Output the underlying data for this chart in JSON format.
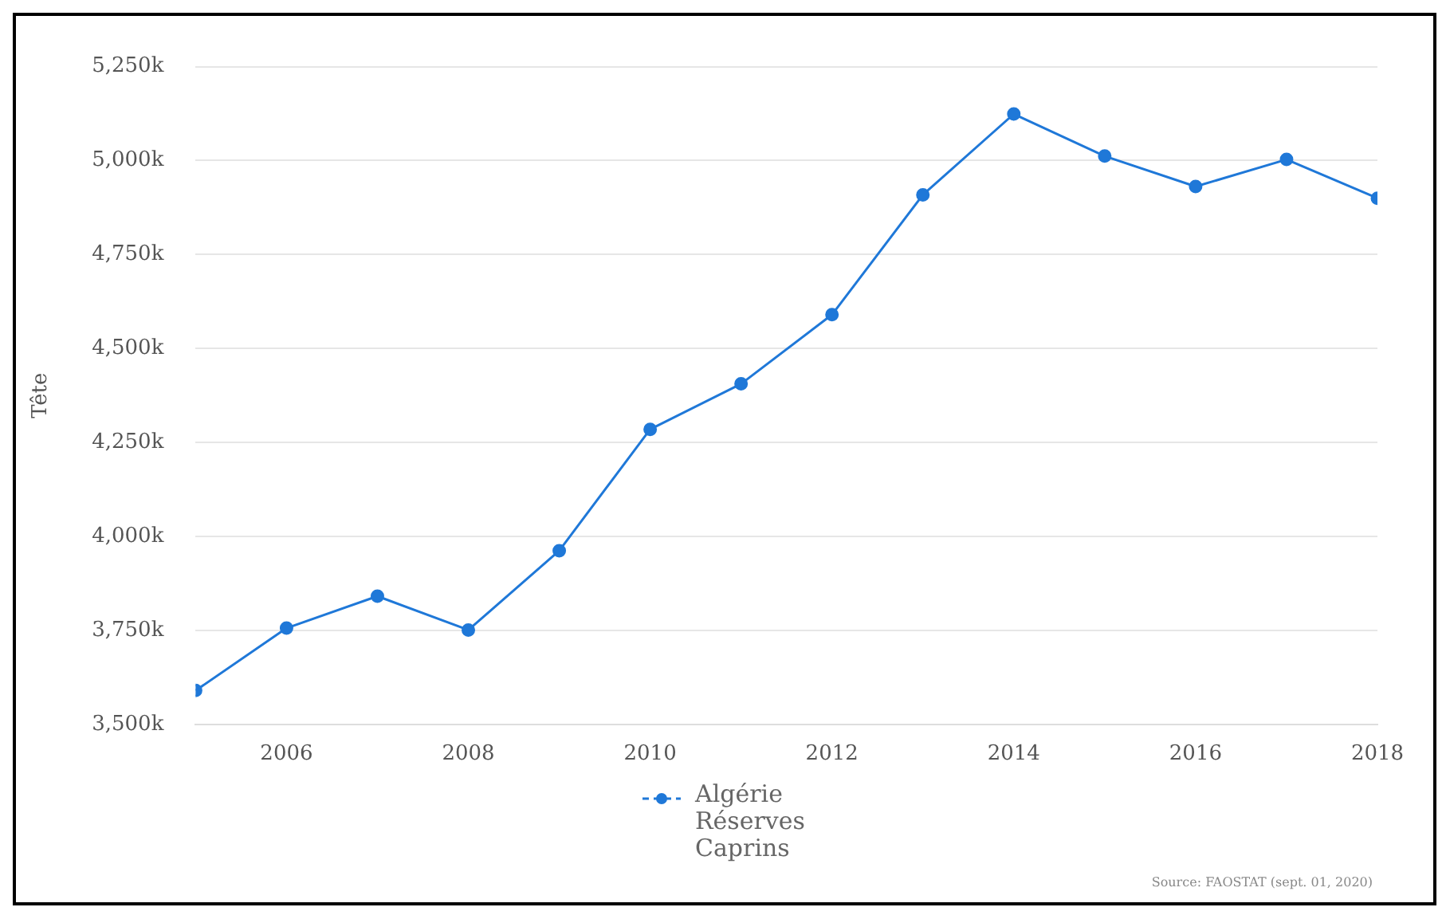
{
  "chart_data": {
    "type": "line",
    "ylabel": "Tête",
    "x": [
      2005,
      2006,
      2007,
      2008,
      2009,
      2010,
      2011,
      2012,
      2013,
      2014,
      2015,
      2016,
      2017,
      2018
    ],
    "series": [
      {
        "name": "Algérie\nRéserves\nCaprins",
        "color": "#1f78d8",
        "values": [
          3590,
          3756,
          3841,
          3751,
          3962,
          4285,
          4406,
          4590,
          4909,
          5124,
          5012,
          4931,
          5003,
          4900
        ]
      }
    ],
    "xlim": [
      2005,
      2018
    ],
    "xticks": [
      2006,
      2008,
      2010,
      2012,
      2014,
      2016,
      2018
    ],
    "ylim": [
      3500,
      5250
    ],
    "yticks": [
      {
        "value": 3500,
        "label": "3,500k"
      },
      {
        "value": 3750,
        "label": "3,750k"
      },
      {
        "value": 4000,
        "label": "4,000k"
      },
      {
        "value": 4250,
        "label": "4,250k"
      },
      {
        "value": 4500,
        "label": "4,500k"
      },
      {
        "value": 4750,
        "label": "4,750k"
      },
      {
        "value": 5000,
        "label": "5,000k"
      },
      {
        "value": 5250,
        "label": "5,250k"
      }
    ],
    "grid": "y",
    "legend": "bottom",
    "marker": "circle",
    "line_style": "solid",
    "annotations": [
      "Source: FAOSTAT (sept. 01, 2020)"
    ]
  }
}
